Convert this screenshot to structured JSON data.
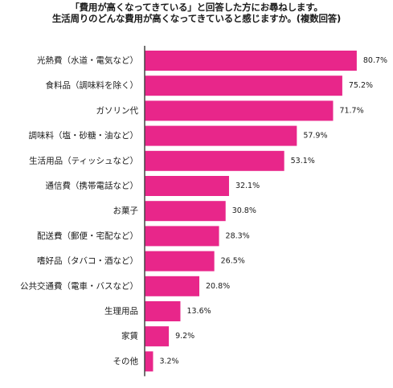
{
  "title_line1": "「費用が高くなってきている」と回答した方にお尋ねします。",
  "title_line2": "生活周りのどんな費用が高くなってきていると感じますか。(複数回答)",
  "bar_color": "#e8268a",
  "axis_color": "#444444",
  "chart_data": {
    "type": "bar",
    "orientation": "horizontal",
    "categories": [
      "光熱費（水道・電気など）",
      "食料品（調味料を除く）",
      "ガソリン代",
      "調味料（塩・砂糖・油など）",
      "生活用品（ティッシュなど）",
      "通信費（携帯電話など）",
      "お菓子",
      "配送費（郵便・宅配など）",
      "嗜好品（タバコ・酒など）",
      "公共交通費（電車・バスなど）",
      "生理用品",
      "家賃",
      "その他"
    ],
    "values": [
      80.7,
      75.2,
      71.7,
      57.9,
      53.1,
      32.1,
      30.8,
      28.3,
      26.5,
      20.8,
      13.6,
      9.2,
      3.2
    ],
    "value_labels": [
      "80.7%",
      "75.2%",
      "71.7%",
      "57.9%",
      "53.1%",
      "32.1%",
      "30.8%",
      "28.3%",
      "26.5%",
      "20.8%",
      "13.6%",
      "9.2%",
      "3.2%"
    ],
    "unit": "%",
    "xlim": [
      0,
      100
    ]
  }
}
